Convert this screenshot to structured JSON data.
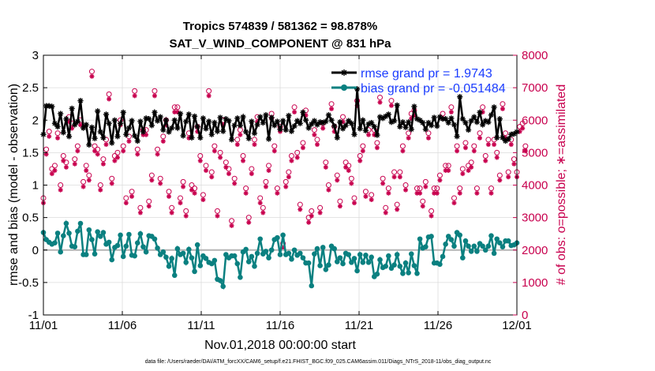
{
  "chart_data": {
    "type": "line",
    "title_line1": "Tropics 574839 / 581362 = 98.878%",
    "title_line2": "SAT_V_WIND_COMPONENT @ 831 hPa",
    "xlabel": "Nov.01,2018 00:00:00 start",
    "ylabel": "rmse and bias (model - observation)",
    "ylabel_right": "# of obs: o=possible; ∗=assimilated",
    "footnote": "data file: /Users/raeder/DAI/ATM_forcXX/CAM6_setup/f.e21.FHIST_BGC.f09_025.CAM6assim.011/Diags_NTrS_2018-11/obs_diag_output.nc",
    "xlim": [
      0,
      30
    ],
    "ylim": [
      -1,
      3
    ],
    "ylim_right": [
      0,
      8000
    ],
    "x_tick_values": [
      0,
      5,
      10,
      15,
      20,
      25,
      30
    ],
    "x_tick_labels": [
      "11/01",
      "11/06",
      "11/11",
      "11/16",
      "11/21",
      "11/26",
      "12/01"
    ],
    "y_tick_values": [
      -1,
      -0.5,
      0,
      0.5,
      1,
      1.5,
      2,
      2.5,
      3
    ],
    "y_tick_labels": [
      "-1",
      "-0.5",
      "0",
      "0.5",
      "1",
      "1.5",
      "2",
      "2.5",
      "3"
    ],
    "y_right_tick_values": [
      0,
      1000,
      2000,
      3000,
      4000,
      5000,
      6000,
      7000,
      8000
    ],
    "y_right_tick_labels": [
      "0",
      "1000",
      "2000",
      "3000",
      "4000",
      "5000",
      "6000",
      "7000",
      "8000"
    ],
    "legend": [
      {
        "name": "rmse grand pr = 1.9743",
        "color": "#000000",
        "marker": "star"
      },
      {
        "name": "bias grand pr = -0.051484",
        "color": "#008080",
        "marker": "circle"
      }
    ],
    "colors": {
      "rmse": "#000000",
      "bias": "#0a8080",
      "obs": "#c8004e",
      "zero_line": "#b4b4b4",
      "legend_text": "#1a3cff"
    },
    "rmse": [
      1.78,
      2.22,
      2.22,
      2.21,
      1.95,
      1.9,
      2.1,
      1.81,
      2.02,
      1.75,
      2.18,
      1.93,
      1.98,
      2.3,
      1.88,
      1.93,
      1.62,
      1.89,
      1.72,
      2.14,
      1.82,
      1.73,
      2.09,
      1.95,
      1.65,
      2.0,
      1.75,
      1.95,
      2.12,
      1.78,
      1.88,
      1.99,
      1.76,
      1.68,
      1.98,
      1.82,
      2.03,
      2.02,
      1.92,
      2.12,
      1.99,
      2.05,
      1.85,
      2.0,
      1.82,
      1.88,
      2.0,
      1.88,
      2.1,
      1.76,
      1.98,
      2.09,
      1.73,
      2.06,
      1.9,
      1.73,
      2.03,
      1.87,
      1.98,
      1.78,
      1.96,
      1.83,
      2.04,
      1.83,
      2.02,
      1.99,
      1.7,
      1.92,
      2.03,
      1.92,
      2.05,
      1.82,
      1.72,
      1.98,
      1.8,
      1.93,
      2.05,
      1.96,
      2.08,
      1.71,
      2.04,
      1.92,
      1.98,
      1.86,
      1.99,
      1.85,
      2.07,
      1.83,
      1.91,
      1.99,
      1.95,
      2.12,
      2.0,
      1.88,
      1.94,
      1.99,
      1.93,
      1.97,
      1.96,
      1.98,
      2.08,
      2.0,
      1.91,
      1.73,
      1.97,
      1.87,
      1.92,
      1.99,
      1.95,
      1.78,
      2.48,
      1.87,
      2.0,
      1.84,
      1.94,
      1.96,
      1.9,
      1.77,
      2.05,
      2.03,
      2.06,
      2.09,
      1.97,
      1.99,
      2.23,
      1.9,
      1.97,
      1.89,
      1.97,
      1.86,
      2.21,
      2.02,
      2.0,
      1.96,
      1.86,
      1.96,
      1.92,
      2.04,
      1.91,
      2.05,
      2.02,
      2.02,
      1.96,
      2.03,
      1.93,
      1.75,
      2.36,
      2.02,
      1.96,
      1.85,
      1.99,
      2.05,
      1.97,
      2.12,
      1.93,
      1.99,
      1.97,
      2.08,
      2.2,
      1.73,
      2.02,
      1.73,
      1.68,
      1.71,
      1.78,
      1.79,
      1.82
    ],
    "bias": [
      0.27,
      0.16,
      0.12,
      0.09,
      0.11,
      0.26,
      -0.03,
      0.22,
      0.41,
      0.26,
      0.06,
      0.05,
      0.29,
      0.41,
      -0.07,
      -0.07,
      0.31,
      0.16,
      -0.06,
      0.28,
      0.21,
      0.27,
      0.09,
      0.12,
      -0.15,
      0.04,
      0.07,
      0.23,
      -0.1,
      0.06,
      0.24,
      -0.08,
      -0.09,
      0.11,
      0.25,
      0.05,
      -0.03,
      0.22,
      0.21,
      0.17,
      0.03,
      -0.07,
      -0.03,
      -0.11,
      -0.25,
      -0.13,
      -0.39,
      0.02,
      -0.07,
      -0.05,
      -0.19,
      0.01,
      -0.12,
      -0.33,
      0.08,
      -0.24,
      -0.09,
      -0.13,
      -0.19,
      -0.21,
      -0.16,
      -0.45,
      -0.47,
      -0.56,
      -0.07,
      -0.12,
      -0.09,
      -0.09,
      -0.21,
      -0.42,
      -0.03,
      0.01,
      -0.18,
      -0.1,
      -0.25,
      -0.05,
      0.17,
      -0.06,
      -0.02,
      -0.12,
      0.0,
      0.16,
      0.19,
      -0.07,
      0.23,
      -0.07,
      -0.05,
      -0.14,
      0.0,
      -0.08,
      -0.05,
      -0.12,
      -0.2,
      -0.2,
      -0.55,
      -0.06,
      0.02,
      -0.24,
      0.04,
      -0.3,
      -0.23,
      0.06,
      0.02,
      -0.18,
      -0.12,
      -0.21,
      -0.05,
      -0.07,
      -0.19,
      -0.13,
      -0.32,
      -0.07,
      -0.19,
      -0.08,
      -0.19,
      -0.11,
      -0.41,
      -0.37,
      -0.15,
      -0.27,
      -0.25,
      -0.09,
      -0.28,
      -0.23,
      -0.07,
      -0.25,
      -0.36,
      -0.2,
      -0.35,
      -0.06,
      -0.24,
      -0.36,
      0.17,
      0.03,
      0.05,
      0.2,
      0.21,
      -0.2,
      -0.2,
      -0.22,
      -0.1,
      0.09,
      0.21,
      0.16,
      0.06,
      0.27,
      0.23,
      -0.12,
      0.14,
      0.06,
      -0.02,
      0.06,
      -0.02,
      0.1,
      0.06,
      0.0,
      0.06,
      0.22,
      -0.05,
      0.17,
      0.11,
      0.05,
      0.14,
      0.14,
      0.07,
      0.08,
      0.11
    ],
    "obs_possible": [
      3600,
      5100,
      5650,
      4500,
      4600,
      5600,
      4000,
      4900,
      4700,
      6100,
      5900,
      4800,
      5200,
      6000,
      4100,
      4600,
      4300,
      7500,
      5200,
      5100,
      4000,
      4800,
      5400,
      6800,
      4200,
      4900,
      5000,
      6000,
      5200,
      3600,
      5500,
      3800,
      6900,
      5100,
      3300,
      5700,
      5700,
      3500,
      4300,
      6900,
      5100,
      4200,
      5500,
      6000,
      3800,
      3300,
      6400,
      6400,
      3600,
      4100,
      3200,
      5600,
      4000,
      3900,
      5800,
      4900,
      3700,
      4600,
      6900,
      4400,
      5200,
      3200,
      5000,
      6000,
      4700,
      4500,
      2900,
      4200,
      5400,
      5700,
      4900,
      3900,
      3000,
      4500,
      5400,
      6100,
      3600,
      3300,
      4100,
      4600,
      6200,
      5200,
      3900,
      5800,
      2200,
      4100,
      4400,
      4900,
      6400,
      5000,
      3400,
      5300,
      6300,
      3000,
      3200,
      5700,
      5400,
      3300,
      5900,
      4700,
      4000,
      6500,
      5800,
      4300,
      3500,
      6100,
      4700,
      4600,
      4200,
      3600,
      6600,
      4900,
      5200,
      3800,
      5700,
      3700,
      5700,
      5300,
      6700,
      4200,
      3300,
      3900,
      6600,
      4400,
      3400,
      4400,
      5200,
      4000,
      5600,
      6200,
      6300,
      3900,
      3900,
      3500,
      4100,
      5600,
      3200,
      3900,
      3900,
      4300,
      6200,
      4600,
      4600,
      6400,
      3600,
      5200,
      3900,
      4500,
      5300,
      4600,
      4700,
      5200,
      3900,
      5600,
      6400,
      4900,
      5400,
      3900,
      5400,
      5000,
      4300,
      6500,
      5600,
      4400,
      5400,
      4800,
      4400,
      5800,
      5900,
      5200
    ],
    "obs_assimilated": [
      3450,
      4950,
      5500,
      4350,
      4450,
      5450,
      3850,
      4750,
      4550,
      5950,
      5750,
      4650,
      5050,
      5850,
      3950,
      4450,
      4150,
      7350,
      5050,
      4950,
      3850,
      4650,
      5250,
      6650,
      4050,
      4750,
      4850,
      5850,
      5050,
      3450,
      5350,
      3650,
      6750,
      4950,
      3150,
      5550,
      5550,
      3350,
      4150,
      6750,
      4950,
      4050,
      5350,
      5850,
      3650,
      3150,
      6250,
      6250,
      3450,
      3950,
      3050,
      5450,
      3850,
      3750,
      5650,
      4750,
      3550,
      4450,
      6750,
      4250,
      5050,
      3050,
      4850,
      5850,
      4550,
      4350,
      2750,
      4050,
      5250,
      5550,
      4750,
      3750,
      2850,
      4350,
      5250,
      5950,
      3450,
      3150,
      3950,
      4450,
      6050,
      5050,
      3750,
      5650,
      2050,
      3950,
      4250,
      4750,
      6250,
      4850,
      3250,
      5150,
      6150,
      2850,
      3050,
      5550,
      5250,
      3150,
      5750,
      4550,
      3850,
      6350,
      5650,
      4150,
      3350,
      5950,
      4550,
      4450,
      4050,
      3450,
      6450,
      4750,
      5050,
      3650,
      5550,
      3550,
      5550,
      5150,
      6550,
      4050,
      3150,
      3750,
      6450,
      4250,
      3250,
      4250,
      5050,
      3850,
      5450,
      6050,
      6150,
      3750,
      3750,
      3350,
      3950,
      5450,
      3050,
      3750,
      3750,
      4150,
      6050,
      4450,
      4450,
      6250,
      3450,
      5050,
      3750,
      4350,
      5150,
      4450,
      4550,
      5050,
      3750,
      5450,
      6250,
      4750,
      5250,
      3750,
      5250,
      4850,
      4150,
      6350,
      5450,
      4250,
      5250,
      4650,
      4250,
      5650,
      5750,
      5050
    ]
  }
}
